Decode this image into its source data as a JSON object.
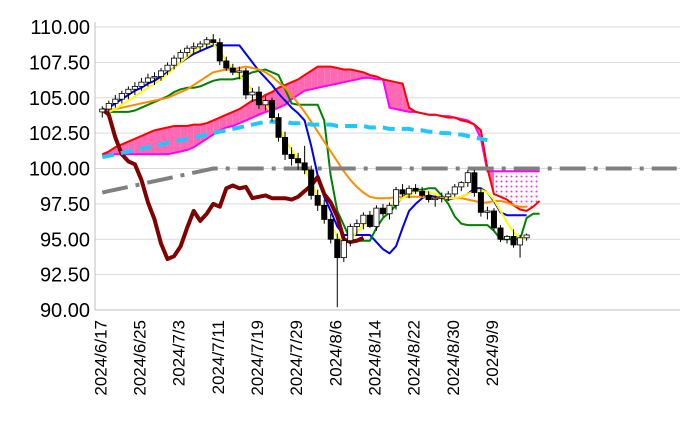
{
  "chart_data": {
    "type": "line",
    "title": "",
    "xlabel": "",
    "ylabel": "",
    "ylim": [
      90,
      110
    ],
    "y_ticks": [
      "110.00",
      "107.50",
      "105.00",
      "102.50",
      "100.00",
      "97.50",
      "95.00",
      "92.50",
      "90.00"
    ],
    "x_ticks": [
      "2024/6/17",
      "2024/6/25",
      "2024/7/3",
      "2024/7/11",
      "2024/7/19",
      "2024/7/29",
      "2024/8/6",
      "2024/8/14",
      "2024/8/22",
      "2024/8/30",
      "2024/9/9"
    ],
    "grid": "horizontal",
    "legend": "none",
    "candles": [
      {
        "o": 104.0,
        "h": 104.4,
        "l": 103.6,
        "c": 104.2
      },
      {
        "o": 104.2,
        "h": 104.8,
        "l": 103.9,
        "c": 104.6
      },
      {
        "o": 104.6,
        "h": 105.2,
        "l": 104.3,
        "c": 104.9
      },
      {
        "o": 104.9,
        "h": 105.5,
        "l": 104.6,
        "c": 105.3
      },
      {
        "o": 105.3,
        "h": 105.8,
        "l": 104.9,
        "c": 105.6
      },
      {
        "o": 105.6,
        "h": 106.1,
        "l": 105.2,
        "c": 105.8
      },
      {
        "o": 105.8,
        "h": 106.4,
        "l": 105.5,
        "c": 106.1
      },
      {
        "o": 106.1,
        "h": 106.7,
        "l": 105.8,
        "c": 106.4
      },
      {
        "o": 106.4,
        "h": 106.8,
        "l": 105.9,
        "c": 106.5
      },
      {
        "o": 106.5,
        "h": 107.1,
        "l": 106.2,
        "c": 106.9
      },
      {
        "o": 106.9,
        "h": 107.5,
        "l": 106.6,
        "c": 107.3
      },
      {
        "o": 107.3,
        "h": 108.0,
        "l": 107.0,
        "c": 107.8
      },
      {
        "o": 107.8,
        "h": 108.4,
        "l": 107.5,
        "c": 108.2
      },
      {
        "o": 108.2,
        "h": 108.7,
        "l": 107.9,
        "c": 108.5
      },
      {
        "o": 108.5,
        "h": 108.9,
        "l": 108.1,
        "c": 108.6
      },
      {
        "o": 108.6,
        "h": 109.0,
        "l": 108.3,
        "c": 108.8
      },
      {
        "o": 108.8,
        "h": 109.3,
        "l": 108.5,
        "c": 109.1
      },
      {
        "o": 109.1,
        "h": 109.5,
        "l": 108.7,
        "c": 108.9
      },
      {
        "o": 108.9,
        "h": 109.2,
        "l": 107.3,
        "c": 107.6
      },
      {
        "o": 107.6,
        "h": 107.9,
        "l": 106.9,
        "c": 107.1
      },
      {
        "o": 107.1,
        "h": 107.4,
        "l": 106.6,
        "c": 106.8
      },
      {
        "o": 106.8,
        "h": 107.2,
        "l": 106.3,
        "c": 106.9
      },
      {
        "o": 106.9,
        "h": 107.1,
        "l": 104.9,
        "c": 105.2
      },
      {
        "o": 105.2,
        "h": 105.7,
        "l": 104.7,
        "c": 105.4
      },
      {
        "o": 105.4,
        "h": 105.8,
        "l": 104.2,
        "c": 104.5
      },
      {
        "o": 104.5,
        "h": 105.1,
        "l": 104.1,
        "c": 104.8
      },
      {
        "o": 104.8,
        "h": 105.0,
        "l": 103.3,
        "c": 103.6
      },
      {
        "o": 103.6,
        "h": 103.9,
        "l": 101.9,
        "c": 102.2
      },
      {
        "o": 102.2,
        "h": 102.6,
        "l": 100.6,
        "c": 101.0
      },
      {
        "o": 101.0,
        "h": 101.5,
        "l": 100.2,
        "c": 100.7
      },
      {
        "o": 100.7,
        "h": 101.1,
        "l": 99.9,
        "c": 100.4
      },
      {
        "o": 100.4,
        "h": 101.6,
        "l": 99.6,
        "c": 99.9
      },
      {
        "o": 99.9,
        "h": 100.2,
        "l": 97.8,
        "c": 98.1
      },
      {
        "o": 98.1,
        "h": 98.5,
        "l": 97.0,
        "c": 97.4
      },
      {
        "o": 97.4,
        "h": 97.8,
        "l": 96.1,
        "c": 96.4
      },
      {
        "o": 96.4,
        "h": 96.8,
        "l": 94.7,
        "c": 95.0
      },
      {
        "o": 95.0,
        "h": 95.4,
        "l": 90.2,
        "c": 93.7
      },
      {
        "o": 93.7,
        "h": 95.2,
        "l": 93.4,
        "c": 94.9
      },
      {
        "o": 94.9,
        "h": 96.1,
        "l": 94.5,
        "c": 95.9
      },
      {
        "o": 95.9,
        "h": 96.4,
        "l": 95.3,
        "c": 96.1
      },
      {
        "o": 96.1,
        "h": 96.9,
        "l": 95.7,
        "c": 96.7
      },
      {
        "o": 96.7,
        "h": 97.0,
        "l": 95.8,
        "c": 95.9
      },
      {
        "o": 95.9,
        "h": 97.4,
        "l": 95.6,
        "c": 97.2
      },
      {
        "o": 97.2,
        "h": 97.5,
        "l": 96.6,
        "c": 96.8
      },
      {
        "o": 96.8,
        "h": 97.6,
        "l": 96.4,
        "c": 97.4
      },
      {
        "o": 97.4,
        "h": 98.7,
        "l": 97.1,
        "c": 98.5
      },
      {
        "o": 98.5,
        "h": 98.9,
        "l": 98.0,
        "c": 98.2
      },
      {
        "o": 98.2,
        "h": 98.8,
        "l": 97.9,
        "c": 98.6
      },
      {
        "o": 98.6,
        "h": 98.9,
        "l": 98.2,
        "c": 98.4
      },
      {
        "o": 98.4,
        "h": 98.7,
        "l": 98.0,
        "c": 98.1
      },
      {
        "o": 98.1,
        "h": 98.4,
        "l": 97.6,
        "c": 97.8
      },
      {
        "o": 97.8,
        "h": 98.1,
        "l": 97.3,
        "c": 97.9
      },
      {
        "o": 97.9,
        "h": 98.3,
        "l": 97.6,
        "c": 98.0
      },
      {
        "o": 98.0,
        "h": 98.4,
        "l": 97.7,
        "c": 98.2
      },
      {
        "o": 98.2,
        "h": 98.9,
        "l": 98.0,
        "c": 98.7
      },
      {
        "o": 98.7,
        "h": 99.1,
        "l": 98.4,
        "c": 99.0
      },
      {
        "o": 99.0,
        "h": 99.9,
        "l": 98.7,
        "c": 99.7
      },
      {
        "o": 99.7,
        "h": 99.9,
        "l": 98.0,
        "c": 98.3
      },
      {
        "o": 98.3,
        "h": 98.6,
        "l": 96.6,
        "c": 96.9
      },
      {
        "o": 96.9,
        "h": 97.3,
        "l": 96.4,
        "c": 97.0
      },
      {
        "o": 97.0,
        "h": 97.2,
        "l": 95.6,
        "c": 95.8
      },
      {
        "o": 95.8,
        "h": 96.0,
        "l": 94.8,
        "c": 95.0
      },
      {
        "o": 95.0,
        "h": 95.3,
        "l": 94.7,
        "c": 95.2
      },
      {
        "o": 95.2,
        "h": 95.7,
        "l": 94.4,
        "c": 94.6
      },
      {
        "o": 94.6,
        "h": 95.3,
        "l": 93.7,
        "c": 95.1
      },
      {
        "o": 95.1,
        "h": 95.4,
        "l": 94.9,
        "c": 95.3
      }
    ],
    "series": [
      {
        "color": "#0000ee",
        "style": "solid",
        "x0": 0,
        "values": [
          104.0,
          104.3,
          104.6,
          104.9,
          105.2,
          105.5,
          105.7,
          106.0,
          106.2,
          106.5,
          106.8,
          107.1,
          107.5,
          107.8,
          108.1,
          108.3,
          108.5,
          108.7,
          108.7,
          108.7,
          108.7,
          108.7,
          108.1,
          107.5,
          106.9,
          106.4,
          105.9,
          105.3,
          104.8,
          104.3,
          103.9,
          103.4,
          101.6,
          99.5,
          98.0,
          97.0,
          95.9,
          95.3,
          95.3,
          95.3,
          95.3,
          95.3,
          94.8,
          94.3,
          94.0,
          94.5,
          95.8,
          97.0,
          97.5,
          97.9,
          98.1,
          98.0,
          97.9,
          97.8,
          97.9,
          98.0,
          98.2,
          98.6,
          98.6,
          98.3,
          97.7,
          96.9,
          96.7,
          96.7,
          96.7,
          96.7
        ]
      },
      {
        "color": "#008000",
        "style": "solid",
        "x0": 0,
        "values": [
          104.0,
          104.0,
          104.0,
          104.0,
          104.0,
          104.1,
          104.3,
          104.5,
          104.7,
          104.9,
          105.1,
          105.4,
          105.6,
          105.7,
          105.7,
          105.8,
          106.0,
          106.2,
          106.3,
          106.3,
          106.3,
          106.4,
          106.6,
          106.8,
          106.9,
          107.0,
          106.8,
          106.6,
          105.6,
          104.6,
          104.5,
          104.5,
          104.5,
          104.5,
          103.4,
          99.5,
          97.0,
          96.0,
          95.0,
          94.9,
          94.9,
          94.9,
          95.8,
          96.5,
          96.9,
          97.4,
          98.0,
          98.3,
          98.5,
          98.5,
          98.6,
          98.6,
          98.1,
          97.5,
          96.6,
          96.1,
          96.0,
          96.0,
          96.0,
          96.0,
          95.6,
          95.0,
          95.0,
          95.0,
          95.0,
          96.5,
          96.8,
          96.8
        ]
      },
      {
        "color": "#ff8c00",
        "style": "solid",
        "x0": 0,
        "values": [
          104.0,
          104.1,
          104.2,
          104.3,
          104.4,
          104.5,
          104.6,
          104.7,
          104.8,
          104.9,
          105.0,
          105.2,
          105.4,
          105.6,
          105.9,
          106.2,
          106.5,
          106.8,
          106.9,
          107.0,
          107.0,
          107.1,
          107.2,
          107.1,
          107.0,
          106.8,
          106.5,
          106.1,
          105.7,
          105.2,
          104.6,
          104.0,
          103.3,
          102.6,
          101.9,
          101.2,
          100.5,
          99.8,
          99.2,
          98.7,
          98.3,
          98.0,
          97.9,
          97.9,
          97.9,
          98.0,
          98.0,
          98.0,
          98.0,
          98.0,
          97.9,
          97.9,
          97.9,
          97.9,
          97.9,
          97.9,
          97.8,
          97.7,
          97.6,
          97.6,
          97.7,
          97.7,
          97.6,
          97.4,
          97.3,
          97.3
        ]
      },
      {
        "color": "#ffff00",
        "style": "solid",
        "x0": 0,
        "values": [
          103.9,
          104.0,
          104.2,
          104.5,
          104.8,
          105.1,
          105.4,
          105.7,
          106.0,
          106.3,
          106.7,
          107.1,
          107.5,
          107.9,
          108.3,
          108.6,
          108.8,
          108.8,
          108.3,
          107.6,
          107.0,
          106.6,
          106.1,
          105.5,
          105.0,
          104.5,
          103.9,
          103.0,
          102.0,
          101.3,
          100.7,
          100.0,
          99.0,
          98.0,
          97.0,
          96.0,
          95.2,
          94.8,
          95.0,
          95.5,
          96.0,
          96.6,
          96.8,
          97.0,
          97.3,
          97.6,
          97.9,
          98.2,
          98.4,
          98.4,
          98.3,
          98.2,
          98.0,
          97.9,
          97.9,
          98.0,
          98.2,
          98.4,
          98.5,
          98.3,
          97.8,
          97.0,
          96.2,
          95.5,
          95.1,
          95.1
        ]
      },
      {
        "color": "#800000",
        "style": "solid",
        "x0": 0,
        "values": [
          104.2,
          103.8,
          102.2,
          101.0,
          100.5,
          100.3,
          99.2,
          97.6,
          96.4,
          94.7,
          93.6,
          93.8,
          94.5,
          95.8,
          97.0,
          96.3,
          96.8,
          97.5,
          97.3,
          98.6,
          98.8,
          98.6,
          98.7,
          97.9,
          98.0,
          98.1,
          97.9,
          97.9,
          97.9,
          97.8,
          98.0,
          98.4,
          98.8,
          99.4,
          98.2,
          97.6,
          96.6,
          95.0,
          94.8,
          94.9,
          95.1
        ]
      },
      {
        "color": "#808080",
        "style": "dashdot",
        "x0": 0,
        "values": [
          98.3,
          98.4,
          98.5,
          98.6,
          98.7,
          98.8,
          98.9,
          99.0,
          99.1,
          99.2,
          99.3,
          99.4,
          99.5,
          99.6,
          99.7,
          99.8,
          99.9,
          100.0,
          100.0,
          100.0,
          100.0,
          100.0,
          100.0,
          100.0,
          100.0,
          100.0,
          100.0,
          100.0,
          100.0,
          100.0,
          100.0,
          100.0,
          100.0,
          100.0,
          100.0,
          100.0,
          100.0,
          100.0,
          100.0,
          100.0,
          100.0,
          100.0,
          100.0,
          100.0,
          100.0,
          100.0,
          100.0,
          100.0,
          100.0,
          100.0,
          100.0,
          100.0,
          100.0,
          100.0,
          100.0,
          100.0,
          100.0,
          100.0,
          100.0,
          100.0,
          100.0,
          100.0,
          100.0,
          100.0,
          100.0,
          100.0,
          100.0,
          100.0,
          100.0,
          100.0,
          100.0,
          100.0,
          100.0,
          100.0,
          100.0,
          100.0,
          100.0,
          100.0,
          100.0,
          100.0,
          100.0,
          100.0,
          100.0,
          100.0,
          100.0,
          100.0,
          100.0,
          100.0,
          100.0
        ]
      },
      {
        "color": "#1ec8ff",
        "style": "dashed",
        "x0": 0,
        "values": [
          100.8,
          100.9,
          101.0,
          101.1,
          101.2,
          101.3,
          101.4,
          101.5,
          101.6,
          101.7,
          101.8,
          101.9,
          102.0,
          102.1,
          102.2,
          102.3,
          102.4,
          102.5,
          102.6,
          102.7,
          102.8,
          102.9,
          103.0,
          103.1,
          103.2,
          103.3,
          103.3,
          103.3,
          103.3,
          103.2,
          103.2,
          103.2,
          103.1,
          103.1,
          103.1,
          103.1,
          103.0,
          103.0,
          103.0,
          103.0,
          103.0,
          102.9,
          102.9,
          102.9,
          102.8,
          102.8,
          102.8,
          102.8,
          102.7,
          102.7,
          102.6,
          102.6,
          102.5,
          102.5,
          102.4,
          102.4,
          102.3,
          102.2,
          102.1,
          102.0
        ]
      }
    ],
    "cloud": {
      "x0": 0,
      "span_a": [
        101.0,
        101.2,
        101.5,
        101.7,
        101.9,
        102.1,
        102.3,
        102.5,
        102.7,
        102.8,
        102.9,
        103.0,
        103.0,
        103.0,
        103.1,
        103.1,
        103.2,
        103.4,
        103.6,
        103.8,
        104.0,
        104.2,
        104.5,
        104.8,
        104.9,
        105.2,
        105.4,
        105.7,
        105.9,
        106.1,
        106.3,
        106.6,
        106.9,
        107.2,
        107.2,
        107.2,
        107.1,
        107.0,
        107.0,
        106.9,
        106.8,
        106.6,
        106.5,
        106.3,
        106.2,
        106.1,
        106.0,
        104.3,
        104.0,
        103.9,
        103.8,
        103.8,
        103.7,
        103.6,
        103.6,
        103.4,
        103.3,
        103.1,
        102.7,
        100.0,
        98.2,
        98.0,
        97.8,
        97.4,
        97.1,
        97.0,
        97.3,
        97.7
      ],
      "span_b": [
        101.0,
        101.0,
        101.0,
        101.0,
        101.0,
        101.0,
        101.0,
        101.0,
        101.0,
        101.0,
        101.0,
        101.1,
        101.2,
        101.3,
        101.5,
        101.8,
        102.1,
        102.4,
        102.7,
        102.9,
        103.0,
        103.2,
        103.4,
        103.6,
        103.8,
        104.0,
        104.1,
        104.3,
        104.5,
        104.9,
        105.2,
        105.5,
        105.6,
        105.7,
        105.8,
        105.9,
        106.0,
        106.1,
        106.2,
        106.3,
        106.4,
        106.4,
        106.3,
        106.3,
        104.3,
        104.2,
        104.1,
        104.0,
        104.0,
        103.9,
        103.8,
        103.8,
        103.7,
        103.7,
        103.6,
        103.5,
        103.4,
        103.1,
        102.1,
        99.8,
        99.8,
        99.8,
        99.8,
        99.8,
        99.8,
        99.8,
        99.8,
        99.8
      ],
      "color_a": "#ff0000",
      "color_b": "#ff00ff",
      "fill": "#ff69b4"
    }
  }
}
